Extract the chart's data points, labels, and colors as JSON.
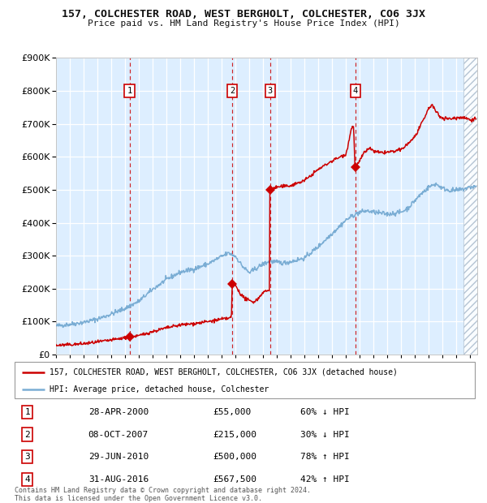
{
  "title": "157, COLCHESTER ROAD, WEST BERGHOLT, COLCHESTER, CO6 3JX",
  "subtitle": "Price paid vs. HM Land Registry's House Price Index (HPI)",
  "legend_line1": "157, COLCHESTER ROAD, WEST BERGHOLT, COLCHESTER, CO6 3JX (detached house)",
  "legend_line2": "HPI: Average price, detached house, Colchester",
  "footnote1": "Contains HM Land Registry data © Crown copyright and database right 2024.",
  "footnote2": "This data is licensed under the Open Government Licence v3.0.",
  "transactions": [
    {
      "num": 1,
      "date": "2000-04-28",
      "price": 55000,
      "x_year": 2000.32
    },
    {
      "num": 2,
      "date": "2007-10-08",
      "price": 215000,
      "x_year": 2007.77
    },
    {
      "num": 3,
      "date": "2010-06-29",
      "price": 500000,
      "x_year": 2010.49
    },
    {
      "num": 4,
      "date": "2016-08-31",
      "price": 567500,
      "x_year": 2016.66
    }
  ],
  "table_rows": [
    {
      "num": 1,
      "date_str": "28-APR-2000",
      "price_str": "£55,000",
      "hpi_str": "60% ↓ HPI"
    },
    {
      "num": 2,
      "date_str": "08-OCT-2007",
      "price_str": "£215,000",
      "hpi_str": "30% ↓ HPI"
    },
    {
      "num": 3,
      "date_str": "29-JUN-2010",
      "price_str": "£500,000",
      "hpi_str": "78% ↑ HPI"
    },
    {
      "num": 4,
      "date_str": "31-AUG-2016",
      "price_str": "£567,500",
      "hpi_str": "42% ↑ HPI"
    }
  ],
  "red_color": "#cc0000",
  "blue_color": "#7aadd4",
  "bg_color": "#ddeeff",
  "grid_color": "#ffffff",
  "title_color": "#111111",
  "ylim": [
    0,
    900000
  ],
  "yticks": [
    0,
    100000,
    200000,
    300000,
    400000,
    500000,
    600000,
    700000,
    800000,
    900000
  ],
  "xlim_start": 1995.0,
  "xlim_end": 2025.5,
  "hpi_anchors": [
    [
      1995.0,
      87000
    ],
    [
      1996.0,
      92000
    ],
    [
      1997.0,
      98000
    ],
    [
      1998.0,
      108000
    ],
    [
      1999.0,
      123000
    ],
    [
      2000.0,
      140000
    ],
    [
      2001.0,
      162000
    ],
    [
      2002.0,
      198000
    ],
    [
      2003.0,
      228000
    ],
    [
      2004.0,
      250000
    ],
    [
      2005.0,
      260000
    ],
    [
      2006.0,
      275000
    ],
    [
      2007.0,
      298000
    ],
    [
      2007.5,
      308000
    ],
    [
      2008.0,
      298000
    ],
    [
      2008.5,
      268000
    ],
    [
      2009.0,
      248000
    ],
    [
      2009.5,
      262000
    ],
    [
      2010.0,
      275000
    ],
    [
      2010.5,
      283000
    ],
    [
      2011.0,
      280000
    ],
    [
      2011.5,
      278000
    ],
    [
      2012.0,
      282000
    ],
    [
      2013.0,
      293000
    ],
    [
      2014.0,
      328000
    ],
    [
      2015.0,
      368000
    ],
    [
      2016.0,
      408000
    ],
    [
      2016.5,
      422000
    ],
    [
      2017.0,
      432000
    ],
    [
      2017.5,
      436000
    ],
    [
      2018.0,
      432000
    ],
    [
      2019.0,
      426000
    ],
    [
      2020.0,
      432000
    ],
    [
      2020.5,
      445000
    ],
    [
      2021.0,
      468000
    ],
    [
      2021.5,
      490000
    ],
    [
      2022.0,
      508000
    ],
    [
      2022.5,
      518000
    ],
    [
      2023.0,
      504000
    ],
    [
      2023.5,
      498000
    ],
    [
      2024.0,
      498000
    ],
    [
      2024.5,
      502000
    ],
    [
      2025.0,
      508000
    ],
    [
      2025.4,
      510000
    ]
  ],
  "red_anchors": [
    [
      1995.0,
      28000
    ],
    [
      1996.0,
      30000
    ],
    [
      1997.0,
      33000
    ],
    [
      1998.0,
      38000
    ],
    [
      1999.0,
      44000
    ],
    [
      2000.3,
      53000
    ],
    [
      2000.32,
      55000
    ],
    [
      2000.34,
      53500
    ],
    [
      2001.0,
      57000
    ],
    [
      2002.0,
      70000
    ],
    [
      2003.0,
      81000
    ],
    [
      2004.0,
      90000
    ],
    [
      2005.0,
      94000
    ],
    [
      2006.0,
      100000
    ],
    [
      2007.0,
      107000
    ],
    [
      2007.7,
      112000
    ],
    [
      2007.76,
      215000
    ],
    [
      2007.77,
      215000
    ],
    [
      2007.78,
      214000
    ],
    [
      2008.0,
      210000
    ],
    [
      2008.3,
      188000
    ],
    [
      2008.6,
      172000
    ],
    [
      2009.0,
      163000
    ],
    [
      2009.3,
      160000
    ],
    [
      2009.6,
      168000
    ],
    [
      2010.0,
      190000
    ],
    [
      2010.45,
      195000
    ],
    [
      2010.48,
      500000
    ],
    [
      2010.49,
      500000
    ],
    [
      2010.5,
      500000
    ],
    [
      2010.7,
      503000
    ],
    [
      2011.0,
      508000
    ],
    [
      2011.5,
      510000
    ],
    [
      2012.0,
      513000
    ],
    [
      2013.0,
      528000
    ],
    [
      2014.0,
      562000
    ],
    [
      2015.0,
      588000
    ],
    [
      2016.0,
      608000
    ],
    [
      2016.4,
      688000
    ],
    [
      2016.55,
      692000
    ],
    [
      2016.65,
      567500
    ],
    [
      2016.66,
      567500
    ],
    [
      2016.7,
      570000
    ],
    [
      2017.0,
      588000
    ],
    [
      2017.3,
      612000
    ],
    [
      2017.5,
      618000
    ],
    [
      2017.7,
      628000
    ],
    [
      2018.0,
      616000
    ],
    [
      2018.5,
      612000
    ],
    [
      2019.0,
      614000
    ],
    [
      2019.5,
      616000
    ],
    [
      2020.0,
      622000
    ],
    [
      2020.5,
      640000
    ],
    [
      2021.0,
      662000
    ],
    [
      2021.5,
      702000
    ],
    [
      2022.0,
      748000
    ],
    [
      2022.2,
      758000
    ],
    [
      2022.5,
      738000
    ],
    [
      2022.8,
      722000
    ],
    [
      2023.0,
      718000
    ],
    [
      2023.5,
      715000
    ],
    [
      2024.0,
      718000
    ],
    [
      2024.5,
      720000
    ],
    [
      2025.0,
      712000
    ],
    [
      2025.4,
      716000
    ]
  ]
}
